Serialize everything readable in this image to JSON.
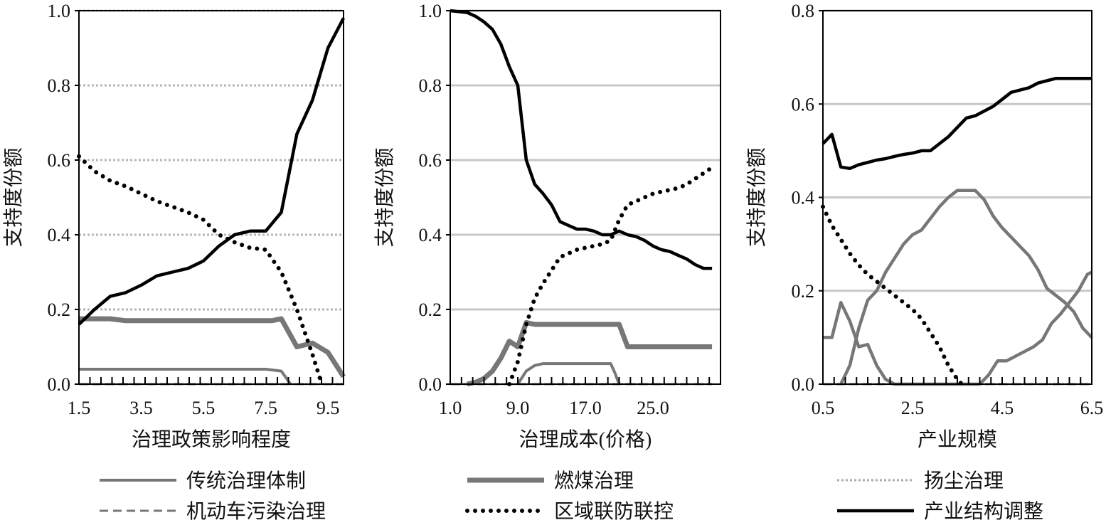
{
  "chart_data": [
    {
      "type": "line",
      "xlabel": "治理政策影响程度",
      "ylabel": "支持度份额",
      "xlim": [
        1.5,
        10.0
      ],
      "ylim": [
        0,
        1.0
      ],
      "xticks": [
        "1.5",
        "3.5",
        "5.5",
        "7.5",
        "9.5"
      ],
      "xtick_values": [
        1.5,
        3.5,
        5.5,
        7.5,
        9.5
      ],
      "yticks": [
        "0.0",
        "0.2",
        "0.4",
        "0.6",
        "0.8",
        "1.0"
      ],
      "ytick_values": [
        0,
        0.2,
        0.4,
        0.6,
        0.8,
        1.0
      ],
      "grid": "horizontal dotted",
      "series": [
        {
          "name": "传统治理体制",
          "style": "thin-solid-gray",
          "x": [
            1.5,
            7.5,
            8.0,
            8.3
          ],
          "y": [
            0.04,
            0.04,
            0.035,
            0.0
          ]
        },
        {
          "name": "燃煤治理",
          "style": "thick-solid-gray",
          "x": [
            1.5,
            2.5,
            3.0,
            4.0,
            5.0,
            6.0,
            7.0,
            7.7,
            8.0,
            8.5,
            9.0,
            9.5,
            10.0
          ],
          "y": [
            0.175,
            0.175,
            0.17,
            0.17,
            0.17,
            0.17,
            0.17,
            0.17,
            0.175,
            0.1,
            0.11,
            0.085,
            0.02
          ]
        },
        {
          "name": "扬尘治理",
          "style": "dotted-light-gray",
          "x": [
            1.5,
            10.0
          ],
          "y": [
            0.0,
            0.0
          ]
        },
        {
          "name": "机动车污染治理",
          "style": "dashed-gray",
          "x": [
            1.5,
            10.0
          ],
          "y": [
            0.0,
            0.0
          ]
        },
        {
          "name": "区域联防联控",
          "style": "dotted-black",
          "x": [
            1.5,
            2.0,
            2.5,
            3.0,
            3.5,
            4.0,
            4.5,
            5.0,
            5.5,
            6.0,
            6.5,
            7.0,
            7.5,
            8.0,
            8.5,
            9.0,
            9.3
          ],
          "y": [
            0.61,
            0.57,
            0.545,
            0.53,
            0.51,
            0.49,
            0.475,
            0.46,
            0.44,
            0.4,
            0.38,
            0.365,
            0.36,
            0.3,
            0.2,
            0.08,
            0.0
          ]
        },
        {
          "name": "产业结构调整",
          "style": "solid-black",
          "x": [
            1.5,
            2.0,
            2.5,
            3.0,
            3.5,
            4.0,
            4.5,
            5.0,
            5.5,
            6.0,
            6.5,
            7.0,
            7.5,
            8.0,
            8.5,
            9.0,
            9.5,
            10.0
          ],
          "y": [
            0.16,
            0.2,
            0.235,
            0.245,
            0.265,
            0.29,
            0.3,
            0.31,
            0.33,
            0.37,
            0.4,
            0.41,
            0.41,
            0.46,
            0.67,
            0.76,
            0.9,
            0.98
          ]
        }
      ]
    },
    {
      "type": "line",
      "xlabel": "治理成本(价格)",
      "ylabel": "支持度份额",
      "xlim": [
        1.0,
        33.0
      ],
      "ylim": [
        0,
        1.0
      ],
      "xticks": [
        "1.0",
        "9.0",
        "17.0",
        "25.0"
      ],
      "xtick_values": [
        1.0,
        9.0,
        17.0,
        25.0
      ],
      "yticks": [
        "0.0",
        "0.2",
        "0.4",
        "0.6",
        "0.8",
        "1.0"
      ],
      "ytick_values": [
        0,
        0.2,
        0.4,
        0.6,
        0.8,
        1.0
      ],
      "grid": "horizontal solid",
      "series": [
        {
          "name": "产业结构调整",
          "style": "solid-black",
          "x": [
            1.0,
            3.0,
            4.0,
            5.0,
            6.0,
            7.0,
            8.0,
            9.0,
            10.0,
            11.0,
            12.0,
            13.0,
            14.0,
            15.0,
            16.0,
            17.0,
            18.0,
            19.0,
            20.0,
            21.0,
            22.0,
            23.0,
            24.0,
            25.0,
            26.0,
            27.0,
            28.0,
            29.0,
            30.0,
            31.0,
            32.0
          ],
          "y": [
            1.0,
            0.995,
            0.985,
            0.97,
            0.95,
            0.91,
            0.85,
            0.8,
            0.6,
            0.535,
            0.51,
            0.48,
            0.435,
            0.425,
            0.415,
            0.415,
            0.41,
            0.4,
            0.4,
            0.41,
            0.4,
            0.395,
            0.385,
            0.37,
            0.36,
            0.355,
            0.345,
            0.335,
            0.32,
            0.31,
            0.31
          ]
        },
        {
          "name": "区域联防联控",
          "style": "dotted-black",
          "x": [
            8.0,
            9.0,
            10.0,
            11.0,
            12.0,
            13.0,
            14.0,
            15.0,
            16.0,
            17.0,
            18.0,
            19.0,
            20.0,
            21.0,
            22.0,
            23.0,
            24.0,
            25.0,
            26.0,
            27.0,
            28.0,
            29.0,
            30.0,
            31.0,
            32.0
          ],
          "y": [
            0.0,
            0.06,
            0.16,
            0.23,
            0.27,
            0.305,
            0.34,
            0.35,
            0.36,
            0.365,
            0.37,
            0.375,
            0.385,
            0.44,
            0.48,
            0.49,
            0.5,
            0.51,
            0.515,
            0.52,
            0.525,
            0.535,
            0.55,
            0.565,
            0.58
          ]
        },
        {
          "name": "燃煤治理",
          "style": "thick-solid-gray",
          "x": [
            3.0,
            4.0,
            5.0,
            6.0,
            7.0,
            8.0,
            9.0,
            10.0,
            11.0,
            12.0,
            13.0,
            14.0,
            15.0,
            16.0,
            17.0,
            18.0,
            19.0,
            20.0,
            21.0,
            22.0,
            25.0,
            28.0,
            32.0
          ],
          "y": [
            0.0,
            0.005,
            0.015,
            0.035,
            0.07,
            0.115,
            0.1,
            0.165,
            0.16,
            0.16,
            0.16,
            0.16,
            0.16,
            0.16,
            0.16,
            0.16,
            0.16,
            0.16,
            0.16,
            0.1,
            0.1,
            0.1,
            0.1
          ]
        },
        {
          "name": "传统治理体制",
          "style": "thin-solid-gray",
          "x": [
            9.0,
            10.0,
            11.0,
            12.0,
            14.0,
            17.0,
            20.0,
            20.5,
            21.0
          ],
          "y": [
            0.0,
            0.035,
            0.05,
            0.055,
            0.055,
            0.055,
            0.055,
            0.03,
            0.0
          ]
        },
        {
          "name": "扬尘治理",
          "style": "dotted-light-gray",
          "x": [
            1.0,
            32.0
          ],
          "y": [
            0.0,
            0.0
          ]
        },
        {
          "name": "机动车污染治理",
          "style": "dashed-gray",
          "x": [
            1.0,
            32.0
          ],
          "y": [
            0.0,
            0.0
          ]
        }
      ]
    },
    {
      "type": "line",
      "xlabel": "产业规模",
      "ylabel": "支持度份额",
      "xlim": [
        0.5,
        6.5
      ],
      "ylim": [
        0,
        0.8
      ],
      "xticks": [
        "0.5",
        "2.5",
        "4.5",
        "6.5"
      ],
      "xtick_values": [
        0.5,
        2.5,
        4.5,
        6.5
      ],
      "yticks": [
        "0.0",
        "0.2",
        "0.4",
        "0.6",
        "0.8"
      ],
      "ytick_values": [
        0,
        0.2,
        0.4,
        0.6,
        0.8
      ],
      "grid": "horizontal solid",
      "series": [
        {
          "name": "产业结构调整",
          "style": "solid-black",
          "x": [
            0.5,
            0.7,
            0.9,
            1.1,
            1.3,
            1.5,
            1.7,
            1.9,
            2.1,
            2.3,
            2.5,
            2.7,
            2.9,
            3.1,
            3.3,
            3.5,
            3.7,
            3.9,
            4.1,
            4.3,
            4.5,
            4.7,
            4.9,
            5.1,
            5.3,
            5.5,
            5.7,
            5.9,
            6.1,
            6.3,
            6.5
          ],
          "y": [
            0.515,
            0.535,
            0.465,
            0.462,
            0.47,
            0.475,
            0.48,
            0.483,
            0.488,
            0.492,
            0.495,
            0.5,
            0.5,
            0.515,
            0.53,
            0.55,
            0.57,
            0.575,
            0.585,
            0.595,
            0.61,
            0.625,
            0.63,
            0.635,
            0.645,
            0.65,
            0.655,
            0.655,
            0.655,
            0.655,
            0.655
          ]
        },
        {
          "name": "区域联防联控",
          "style": "dotted-black",
          "x": [
            0.5,
            0.7,
            0.9,
            1.1,
            1.3,
            1.5,
            1.7,
            1.9,
            2.1,
            2.3,
            2.5,
            2.7,
            2.9,
            3.1,
            3.3,
            3.5,
            3.6
          ],
          "y": [
            0.38,
            0.34,
            0.31,
            0.28,
            0.255,
            0.235,
            0.22,
            0.205,
            0.19,
            0.175,
            0.16,
            0.14,
            0.11,
            0.08,
            0.04,
            0.01,
            0.0
          ]
        },
        {
          "name": "燃煤治理 (hump)",
          "legend_name": "燃煤治理",
          "style": "medium-solid-gray",
          "x": [
            0.9,
            1.1,
            1.3,
            1.5,
            1.7,
            1.9,
            2.1,
            2.3,
            2.5,
            2.7,
            2.9,
            3.1,
            3.3,
            3.5,
            3.7,
            3.9,
            4.1,
            4.3,
            4.5,
            4.7,
            4.9,
            5.1,
            5.3,
            5.5,
            5.7,
            5.9,
            6.1,
            6.3,
            6.5
          ],
          "y": [
            0.0,
            0.04,
            0.12,
            0.18,
            0.2,
            0.24,
            0.27,
            0.3,
            0.32,
            0.33,
            0.355,
            0.38,
            0.4,
            0.415,
            0.415,
            0.415,
            0.395,
            0.36,
            0.335,
            0.315,
            0.295,
            0.275,
            0.245,
            0.205,
            0.19,
            0.175,
            0.155,
            0.12,
            0.1
          ]
        },
        {
          "name": "传统治理体制",
          "style": "medium-solid-gray",
          "x": [
            0.5,
            0.7,
            0.9,
            1.1,
            1.3,
            1.5,
            1.7,
            1.9,
            2.1,
            2.3,
            4.0,
            4.2,
            4.4,
            4.6,
            4.8,
            5.0,
            5.2,
            5.4,
            5.6,
            5.8,
            6.0,
            6.2,
            6.4,
            6.5
          ],
          "y": [
            0.1,
            0.1,
            0.175,
            0.135,
            0.08,
            0.085,
            0.04,
            0.01,
            0.0,
            0.0,
            0.0,
            0.02,
            0.05,
            0.05,
            0.06,
            0.07,
            0.08,
            0.095,
            0.13,
            0.15,
            0.175,
            0.2,
            0.235,
            0.24
          ]
        },
        {
          "name": "扬尘治理",
          "style": "dotted-light-gray",
          "x": [
            0.5,
            6.5
          ],
          "y": [
            0.0,
            0.0
          ]
        },
        {
          "name": "机动车污染治理",
          "style": "dashed-gray",
          "x": [
            0.5,
            6.5
          ],
          "y": [
            0.0,
            0.0
          ]
        }
      ]
    }
  ],
  "legend": [
    {
      "label": "传统治理体制",
      "style": "thin-solid-gray"
    },
    {
      "label": "燃煤治理",
      "style": "thick-solid-gray"
    },
    {
      "label": "扬尘治理",
      "style": "dotted-light-gray"
    },
    {
      "label": "机动车污染治理",
      "style": "dashed-gray"
    },
    {
      "label": "区域联防联控",
      "style": "dotted-black"
    },
    {
      "label": "产业结构调整",
      "style": "solid-black"
    }
  ],
  "styles": {
    "thin-solid-gray": {
      "color": "#777777",
      "dash": ""
    },
    "thick-solid-gray": {
      "color": "#777777",
      "dash": ""
    },
    "medium-solid-gray": {
      "color": "#777777",
      "dash": ""
    },
    "dotted-light-gray": {
      "color": "#aaaaaa",
      "dash": "3 3"
    },
    "dashed-gray": {
      "color": "#777777",
      "dash": "12 7"
    },
    "dotted-black": {
      "color": "#000000",
      "dash": "0 11"
    },
    "solid-black": {
      "color": "#000000",
      "dash": ""
    }
  }
}
